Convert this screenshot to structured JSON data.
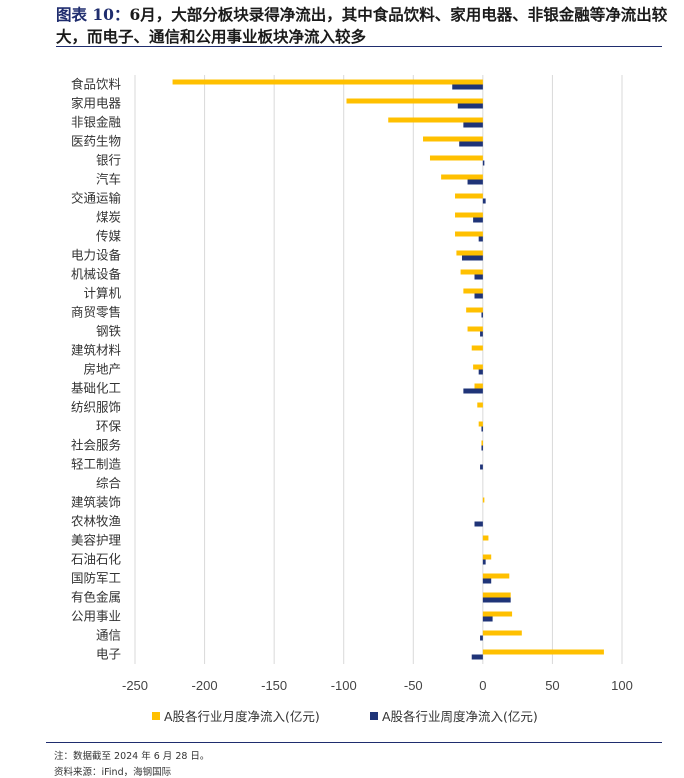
{
  "header": {
    "figure_label": "图表 10：",
    "title": "6月，大部分板块录得净流出，其中食品饮料、家用电器、非银金融等净流出较大，而电子、通信和公用事业板块净流入较多"
  },
  "footer": {
    "note": "注：数据截至 2024 年 6 月 28 日。",
    "source": "资料来源：iFind，海钢国际"
  },
  "colors": {
    "monthly": "#FFC000",
    "weekly": "#1F3478",
    "grid": "#d9d9d9"
  },
  "chart_data": {
    "type": "bar",
    "orientation": "horizontal",
    "title": "",
    "xlabel": "",
    "ylabel": "",
    "xlim": [
      -250,
      100
    ],
    "xticks": [
      -250,
      -200,
      -150,
      -100,
      -50,
      0,
      50,
      100
    ],
    "categories": [
      "食品饮料",
      "家用电器",
      "非银金融",
      "医药生物",
      "银行",
      "汽车",
      "交通运输",
      "煤炭",
      "传媒",
      "电力设备",
      "机械设备",
      "计算机",
      "商贸零售",
      "钢铁",
      "建筑材料",
      "房地产",
      "基础化工",
      "纺织服饰",
      "环保",
      "社会服务",
      "轻工制造",
      "综合",
      "建筑装饰",
      "农林牧渔",
      "美容护理",
      "石油石化",
      "国防军工",
      "有色金属",
      "公用事业",
      "通信",
      "电子"
    ],
    "series": [
      {
        "name": "A股各行业月度净流入(亿元)",
        "values": [
          -223,
          -98,
          -68,
          -43,
          -38,
          -30,
          -20,
          -20,
          -20,
          -19,
          -16,
          -14,
          -12,
          -11,
          -8,
          -7,
          -6,
          -4,
          -3,
          -1,
          0,
          0,
          0.5,
          0,
          4,
          6,
          19,
          20,
          21,
          28,
          87
        ]
      },
      {
        "name": "A股各行业周度净流入(亿元)",
        "values": [
          -22,
          -18,
          -14,
          -17,
          1,
          -11,
          2,
          -7,
          -3,
          -15,
          -6,
          -6,
          -1,
          -2,
          0,
          -3,
          -14,
          0,
          -1,
          -1,
          -2,
          0,
          0,
          -6,
          0,
          2,
          6,
          20,
          7,
          -2,
          -8
        ]
      }
    ],
    "legend_position": "bottom",
    "grid": true
  }
}
